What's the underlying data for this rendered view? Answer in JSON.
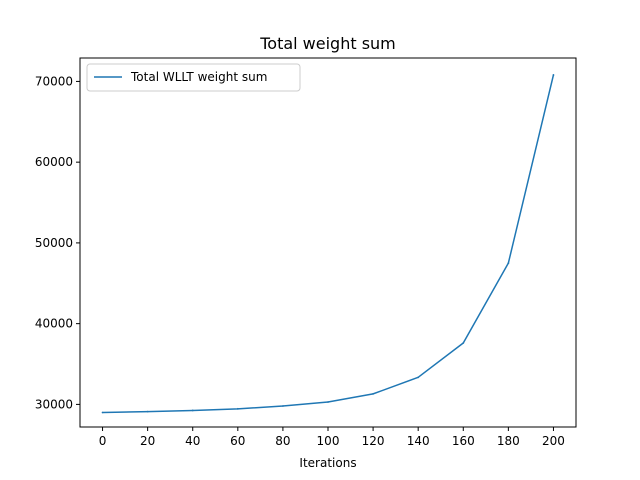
{
  "chart_data": {
    "type": "line",
    "title": "Total weight sum",
    "xlabel": "Iterations",
    "ylabel": "",
    "xlim": [
      -10,
      210
    ],
    "ylim": [
      27200,
      72900
    ],
    "xticks": [
      0,
      20,
      40,
      60,
      80,
      100,
      120,
      140,
      160,
      180,
      200
    ],
    "xtick_labels": [
      "0",
      "20",
      "40",
      "60",
      "80",
      "100",
      "120",
      "140",
      "160",
      "180",
      "200"
    ],
    "yticks": [
      30000,
      40000,
      50000,
      60000,
      70000
    ],
    "ytick_labels": [
      "30000",
      "40000",
      "50000",
      "60000",
      "70000"
    ],
    "grid": false,
    "legend_position": "top-left",
    "series": [
      {
        "name": "Total WLLT weight sum",
        "color": "#1f77b4",
        "x": [
          0,
          20,
          40,
          60,
          80,
          100,
          120,
          140,
          160,
          180,
          200
        ],
        "y": [
          29000,
          29100,
          29250,
          29450,
          29800,
          30300,
          31300,
          33350,
          37600,
          47500,
          70800
        ]
      }
    ]
  }
}
